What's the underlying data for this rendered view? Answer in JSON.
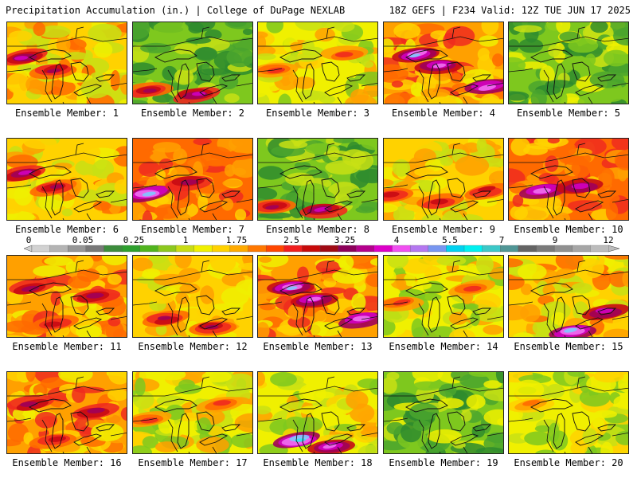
{
  "header": {
    "title_left": "Precipitation Accumulation (in.) | College of DuPage NEXLAB",
    "title_right": "18Z GEFS | F234 Valid: 12Z TUE JUN 17 2025"
  },
  "panels": [
    {
      "label": "Ensemble Member: 1",
      "regime": "wet-north"
    },
    {
      "label": "Ensemble Member: 2",
      "regime": "dry-south-band"
    },
    {
      "label": "Ensemble Member: 3",
      "regime": "moderate"
    },
    {
      "label": "Ensemble Member: 4",
      "regime": "heavy-north"
    },
    {
      "label": "Ensemble Member: 5",
      "regime": "dry"
    },
    {
      "label": "Ensemble Member: 6",
      "regime": "wet-north"
    },
    {
      "label": "Ensemble Member: 7",
      "regime": "heavy-west"
    },
    {
      "label": "Ensemble Member: 8",
      "regime": "dry-south-band"
    },
    {
      "label": "Ensemble Member: 9",
      "regime": "band-south"
    },
    {
      "label": "Ensemble Member: 10",
      "regime": "heavy-central"
    },
    {
      "label": "Ensemble Member: 11",
      "regime": "wet-wide"
    },
    {
      "label": "Ensemble Member: 12",
      "regime": "moderate-south"
    },
    {
      "label": "Ensemble Member: 13",
      "regime": "heavy-north"
    },
    {
      "label": "Ensemble Member: 14",
      "regime": "moderate"
    },
    {
      "label": "Ensemble Member: 15",
      "regime": "heavy-east"
    },
    {
      "label": "Ensemble Member: 16",
      "regime": "wet-wide"
    },
    {
      "label": "Ensemble Member: 17",
      "regime": "moderate"
    },
    {
      "label": "Ensemble Member: 18",
      "regime": "heavy-south"
    },
    {
      "label": "Ensemble Member: 19",
      "regime": "dry"
    },
    {
      "label": "Ensemble Member: 20",
      "regime": "dry-east"
    }
  ],
  "colorbar": {
    "tick_labels": [
      "0",
      "0.05",
      "0.25",
      "1",
      "1.75",
      "2.5",
      "3.25",
      "4",
      "5.5",
      "7",
      "9",
      "12"
    ],
    "colors": [
      "#d2d2d2",
      "#b4b4b4",
      "#969696",
      "#787878",
      "#3c8c3c",
      "#2ea02e",
      "#50b41e",
      "#8cc81e",
      "#c8dc14",
      "#f0f000",
      "#ffd200",
      "#ffaa00",
      "#ff7800",
      "#ff4600",
      "#f01e1e",
      "#c80a0a",
      "#a00a14",
      "#8c005a",
      "#b4008c",
      "#dc00c8",
      "#f050f0",
      "#b478f0",
      "#7896f0",
      "#00d2f0",
      "#00f0f0",
      "#3cc8c8",
      "#509696",
      "#646464",
      "#7a7a7a",
      "#909090",
      "#a6a6a6",
      "#bcbcbc"
    ]
  }
}
